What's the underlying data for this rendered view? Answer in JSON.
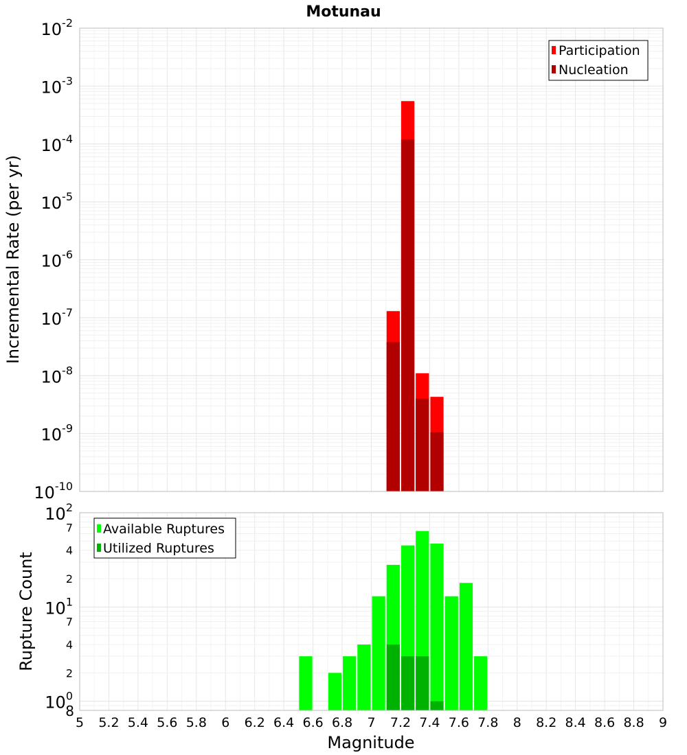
{
  "chart_data": [
    {
      "type": "bar",
      "title": "Motunau",
      "ylabel": "Incremental Rate (per yr)",
      "xlabel": "",
      "xlim": [
        5,
        9
      ],
      "ylim": [
        1e-10,
        0.01
      ],
      "y_scale": "log",
      "grid": true,
      "legend_position": "top-right",
      "bar_width": 0.1,
      "y_ticks": [
        {
          "base": "10",
          "exp": "-10"
        },
        {
          "base": "10",
          "exp": "-9"
        },
        {
          "base": "10",
          "exp": "-8"
        },
        {
          "base": "10",
          "exp": "-7"
        },
        {
          "base": "10",
          "exp": "-6"
        },
        {
          "base": "10",
          "exp": "-5"
        },
        {
          "base": "10",
          "exp": "-4"
        },
        {
          "base": "10",
          "exp": "-3"
        },
        {
          "base": "10",
          "exp": "-2"
        }
      ],
      "x": [
        7.15,
        7.25,
        7.35,
        7.45
      ],
      "series": [
        {
          "name": "Participation",
          "color": "#ff0000",
          "values": [
            1.3e-07,
            0.00055,
            1.1e-08,
            4.3e-09
          ]
        },
        {
          "name": "Nucleation",
          "color": "#b20000",
          "values": [
            3.8e-08,
            0.00012,
            4e-09,
            1.05e-09
          ]
        }
      ]
    },
    {
      "type": "bar",
      "title": "",
      "ylabel": "Rupture Count",
      "xlabel": "Magnitude",
      "xlim": [
        5,
        9
      ],
      "ylim": [
        0.8,
        100
      ],
      "y_scale": "log",
      "grid": true,
      "legend_position": "top-left",
      "bar_width": 0.1,
      "x_ticks": [
        "5",
        "5.2",
        "5.4",
        "5.6",
        "5.8",
        "6",
        "6.2",
        "6.4",
        "6.6",
        "6.8",
        "7",
        "7.2",
        "7.4",
        "7.6",
        "7.8",
        "8",
        "8.2",
        "8.4",
        "8.6",
        "8.8",
        "9"
      ],
      "y_major_ticks": [
        {
          "value": 1,
          "base": "10",
          "exp": "0"
        },
        {
          "value": 10,
          "base": "10",
          "exp": "1"
        },
        {
          "value": 100,
          "base": "10",
          "exp": "2"
        }
      ],
      "y_minor_ticks": [
        {
          "value": 0.8,
          "label": "8"
        },
        {
          "value": 2,
          "label": "2"
        },
        {
          "value": 4,
          "label": "4"
        },
        {
          "value": 7,
          "label": "7"
        },
        {
          "value": 20,
          "label": "2"
        },
        {
          "value": 40,
          "label": "4"
        },
        {
          "value": 70,
          "label": "7"
        }
      ],
      "x": [
        6.55,
        6.75,
        6.85,
        6.95,
        7.05,
        7.15,
        7.25,
        7.35,
        7.45,
        7.55,
        7.65,
        7.75
      ],
      "series": [
        {
          "name": "Available Ruptures",
          "color": "#00ff00",
          "values": [
            3,
            2,
            3,
            4,
            13,
            28,
            45,
            64,
            47,
            13,
            18,
            3
          ]
        },
        {
          "name": "Utilized Ruptures",
          "color": "#00b200",
          "values": [
            null,
            null,
            null,
            null,
            null,
            4,
            3,
            3,
            1,
            null,
            null,
            null
          ]
        }
      ]
    }
  ]
}
